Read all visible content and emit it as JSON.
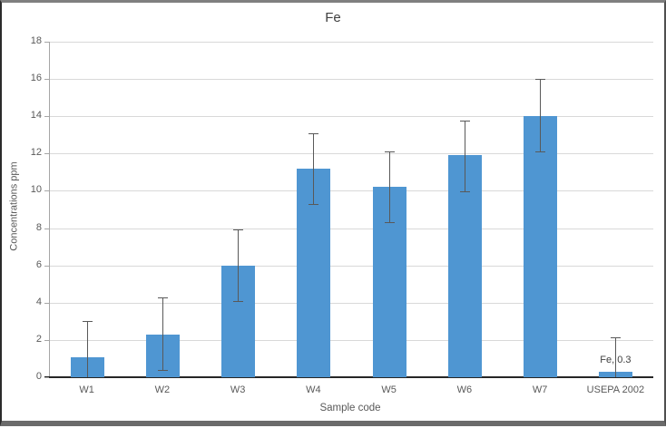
{
  "chart_data": {
    "type": "bar",
    "title": "Fe",
    "xlabel": "Sample code",
    "ylabel": "Concentrations ppm",
    "ylim": [
      0,
      18
    ],
    "ytick_step": 2,
    "grid": true,
    "legend": null,
    "categories": [
      "W1",
      "W2",
      "W3",
      "W4",
      "W5",
      "W6",
      "W7",
      "USEPA 2002"
    ],
    "values": [
      1.05,
      2.3,
      6.0,
      11.2,
      10.2,
      11.9,
      14.0,
      0.3
    ],
    "error_low": [
      0,
      0.4,
      4.1,
      9.3,
      8.3,
      9.95,
      12.1,
      0
    ],
    "error_high": [
      3.0,
      4.3,
      7.95,
      13.1,
      12.1,
      13.75,
      16.0,
      2.15
    ],
    "data_labels": [
      null,
      null,
      null,
      null,
      null,
      null,
      null,
      "Fe, 0.3"
    ],
    "colors": {
      "bar": "#4f96d2",
      "gridline": "#d9d9d9",
      "axis_line": "#a6a6a6",
      "baseline": "#262626",
      "error_bar": "#595959",
      "tick_text": "#595959",
      "title_text": "#404040"
    }
  }
}
